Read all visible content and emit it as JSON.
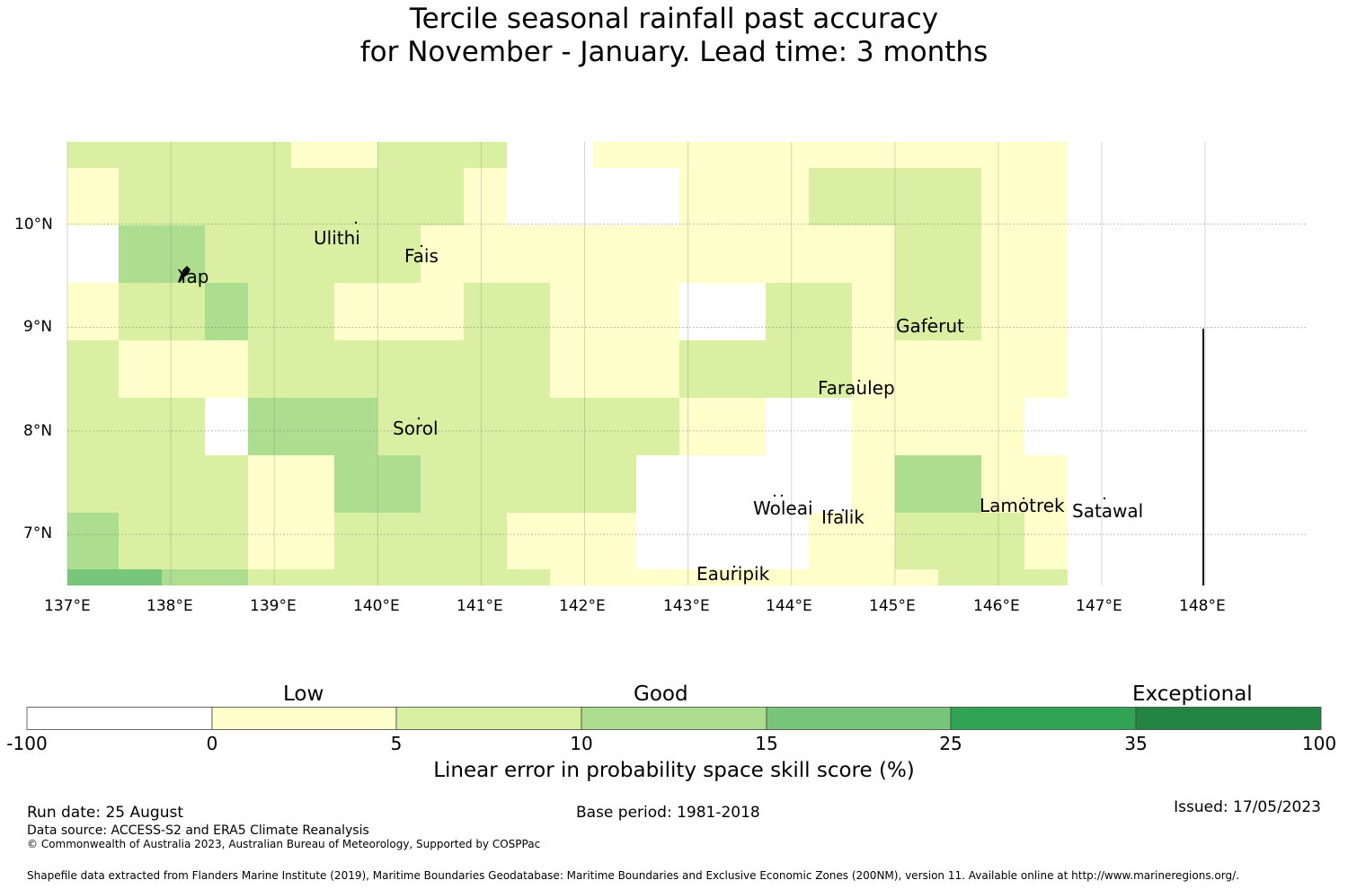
{
  "title": {
    "line1": "Tercile seasonal rainfall past accuracy",
    "line2": "for November - January. Lead time: 3 months"
  },
  "map": {
    "lon_labels": [
      "137°E",
      "138°E",
      "139°E",
      "140°E",
      "141°E",
      "142°E",
      "143°E",
      "144°E",
      "145°E",
      "146°E",
      "147°E",
      "148°E"
    ],
    "lat_labels": [
      "10°N",
      "9°N",
      "8°N",
      "7°N"
    ],
    "places": [
      "Ulithi",
      "Fais",
      "Yap",
      "Gaferut",
      "Faraulep",
      "Sorol",
      "Woleai",
      "Ifalik",
      "Lamotrek",
      "Satawal",
      "Eauripik"
    ],
    "grid_values": [
      [
        5,
        5,
        5,
        5,
        5,
        0,
        0,
        5,
        5,
        5,
        -1,
        -1,
        0,
        0,
        0,
        0,
        0,
        0,
        0,
        0,
        0,
        0,
        0,
        0
      ],
      [
        0,
        5,
        5,
        5,
        5,
        5,
        5,
        5,
        5,
        0,
        -1,
        -1,
        -1,
        -1,
        0,
        0,
        0,
        5,
        5,
        5,
        5,
        0,
        0,
        0
      ],
      [
        -1,
        10,
        10,
        5,
        5,
        5,
        5,
        5,
        0,
        0,
        0,
        0,
        0,
        0,
        0,
        0,
        0,
        0,
        0,
        5,
        5,
        0,
        0,
        0
      ],
      [
        0,
        5,
        5,
        10,
        5,
        5,
        0,
        0,
        0,
        5,
        5,
        0,
        0,
        0,
        -1,
        -1,
        5,
        5,
        0,
        5,
        5,
        0,
        0,
        0
      ],
      [
        5,
        0,
        0,
        0,
        5,
        5,
        5,
        5,
        5,
        5,
        5,
        0,
        0,
        0,
        5,
        5,
        5,
        5,
        0,
        0,
        0,
        0,
        0,
        0
      ],
      [
        5,
        5,
        5,
        -1,
        10,
        10,
        10,
        5,
        5,
        5,
        5,
        5,
        5,
        5,
        0,
        0,
        -1,
        -1,
        0,
        0,
        0,
        0,
        -1,
        -1
      ],
      [
        5,
        5,
        5,
        5,
        0,
        0,
        10,
        10,
        5,
        5,
        5,
        5,
        5,
        -1,
        -1,
        -1,
        -1,
        -1,
        0,
        10,
        10,
        0,
        0,
        -1
      ],
      [
        10,
        5,
        5,
        5,
        0,
        0,
        5,
        5,
        5,
        5,
        0,
        0,
        0,
        -1,
        -1,
        -1,
        -1,
        0,
        0,
        5,
        5,
        5,
        0,
        5
      ],
      [
        15,
        15,
        10,
        10,
        5,
        5,
        5,
        5,
        5,
        5,
        5,
        0,
        0,
        0,
        0,
        0,
        0,
        0,
        0,
        0,
        5,
        5,
        5,
        0
      ]
    ]
  },
  "legend": {
    "categories": [
      "Low",
      "Good",
      "Exceptional"
    ],
    "ticks": [
      "-100",
      "0",
      "5",
      "10",
      "15",
      "25",
      "35",
      "100"
    ],
    "colors": [
      "#ffffff",
      "#ffffcc",
      "#d9f0a3",
      "#addd8e",
      "#78c679",
      "#31a354",
      "#238443"
    ],
    "label": "Linear error in probability space skill score (%)"
  },
  "footer": {
    "run_date": "Run date: 25 August",
    "base_period": "Base period: 1981-2018",
    "issued": "Issued: 17/05/2023",
    "data_source": "Data source: ACCESS-S2 and ERA5 Climate Reanalysis",
    "copyright": "© Commonwealth of Australia 2023, Australian Bureau of Meteorology, Supported by COSPPac",
    "shapefile": "Shapefile data extracted from Flanders Marine Institute (2019), Maritime Boundaries Geodatabase: Maritime Boundaries and Exclusive Economic Zones (200NM), version 11. Available online at http://www.marineregions.org/."
  }
}
